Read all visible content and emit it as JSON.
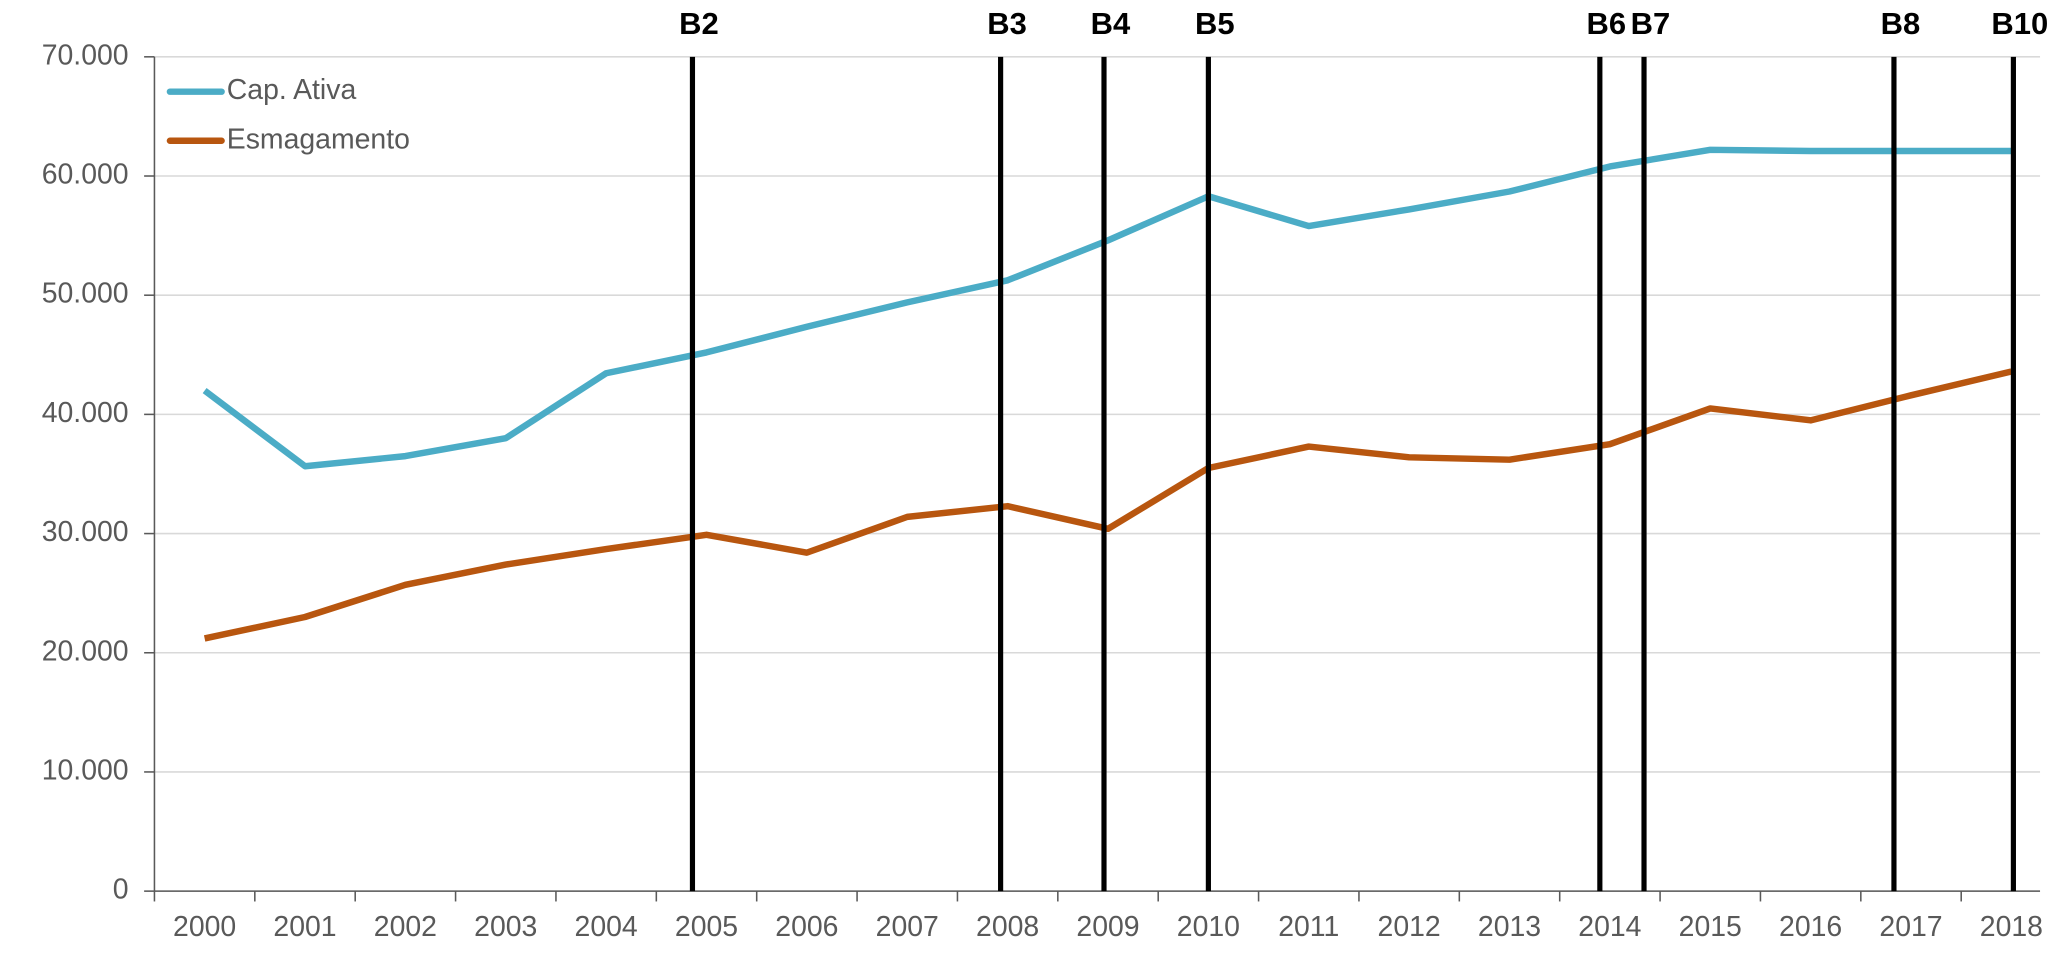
{
  "chart_data": {
    "type": "line",
    "x": [
      2000,
      2001,
      2002,
      2003,
      2004,
      2005,
      2006,
      2007,
      2008,
      2009,
      2010,
      2011,
      2012,
      2013,
      2014,
      2015,
      2016,
      2017,
      2018
    ],
    "xlim": [
      1999.5,
      2018.5
    ],
    "xticks": [
      2000,
      2001,
      2002,
      2003,
      2004,
      2005,
      2006,
      2007,
      2008,
      2009,
      2010,
      2011,
      2012,
      2013,
      2014,
      2015,
      2016,
      2017,
      2018
    ],
    "ylim": [
      0,
      70000
    ],
    "yticks": [
      0,
      {
        "value": 10000,
        "label": "10.000"
      },
      {
        "value": 20000,
        "label": "20.000"
      },
      {
        "value": 30000,
        "label": "30.000"
      },
      {
        "value": 40000,
        "label": "40.000"
      },
      {
        "value": 50000,
        "label": "50.000"
      },
      {
        "value": 60000,
        "label": "60.000"
      },
      {
        "value": 70000,
        "label": "70.000"
      }
    ],
    "grid": true,
    "legend": "upper left",
    "series": [
      {
        "name": "Cap. Ativa",
        "color": "#4bacc6",
        "values": [
          42000,
          35650,
          36500,
          38000,
          43450,
          45200,
          47350,
          49400,
          51250,
          54600,
          58300,
          55800,
          57200,
          58700,
          60800,
          62200,
          62100,
          62100,
          62100
        ]
      },
      {
        "name": "Esmagamento",
        "color": "#b8560f",
        "values": [
          21200,
          23000,
          25700,
          27400,
          28700,
          29900,
          28400,
          31400,
          32300,
          30400,
          35500,
          37300,
          36400,
          36200,
          37500,
          40500,
          39500,
          41600,
          43600
        ]
      }
    ],
    "annotations": [
      {
        "label": "B2",
        "x": 2004.86
      },
      {
        "label": "B3",
        "x": 2007.93
      },
      {
        "label": "B4",
        "x": 2008.96
      },
      {
        "label": "B5",
        "x": 2010.0
      },
      {
        "label": "B6",
        "x": 2013.9
      },
      {
        "label": "B7",
        "x": 2014.34
      },
      {
        "label": "B8",
        "x": 2016.83
      },
      {
        "label": "B10",
        "x": 2018.02
      }
    ]
  }
}
